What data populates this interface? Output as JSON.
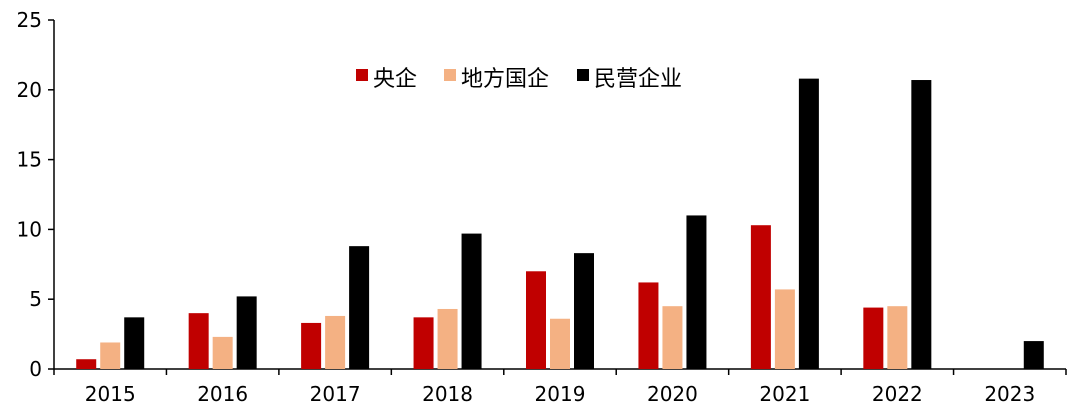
{
  "chart_data": {
    "type": "bar",
    "categories": [
      "2015",
      "2016",
      "2017",
      "2018",
      "2019",
      "2020",
      "2021",
      "2022",
      "2023"
    ],
    "series": [
      {
        "name": "央企",
        "color": "#c00000",
        "values": [
          0.7,
          4.0,
          3.3,
          3.7,
          7.0,
          6.2,
          10.3,
          4.4,
          0
        ]
      },
      {
        "name": "地方国企",
        "color": "#f4b183",
        "values": [
          1.9,
          2.3,
          3.8,
          4.3,
          3.6,
          4.5,
          5.7,
          4.5,
          0
        ]
      },
      {
        "name": "民营企业",
        "color": "#000000",
        "values": [
          3.7,
          5.2,
          8.8,
          9.7,
          8.3,
          11.0,
          20.8,
          20.7,
          2.0
        ]
      }
    ],
    "yticks": [
      "0",
      "5",
      "10",
      "15",
      "20",
      "25"
    ],
    "ylim": [
      0,
      25
    ],
    "title": "",
    "xlabel": "",
    "ylabel": "",
    "legend_position": "top-center",
    "grid": false
  }
}
